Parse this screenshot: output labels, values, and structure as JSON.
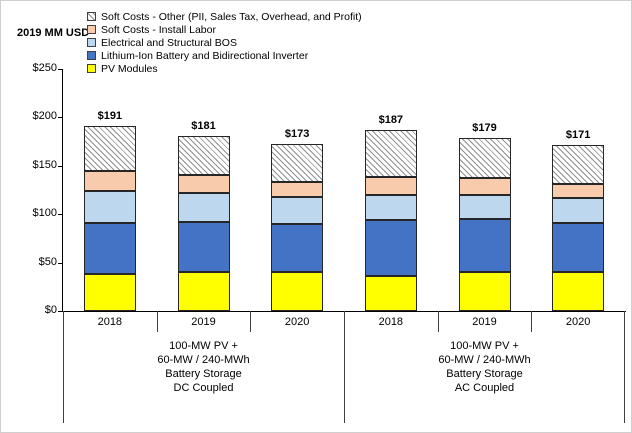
{
  "chart_data": {
    "type": "stacked-bar",
    "title": "",
    "ylabel": "2019 MM USD",
    "ylim": [
      0,
      250
    ],
    "grid": false,
    "legend_position": "top",
    "yticks": [
      {
        "v": 0,
        "label": "$0"
      },
      {
        "v": 50,
        "label": "$50"
      },
      {
        "v": 100,
        "label": "$100"
      },
      {
        "v": 150,
        "label": "$150"
      },
      {
        "v": 200,
        "label": "$200"
      },
      {
        "v": 250,
        "label": "$250"
      }
    ],
    "categories": [
      "2018",
      "2019",
      "2020",
      "2018",
      "2019",
      "2020"
    ],
    "groups": [
      {
        "label_lines": [
          "100-MW PV +",
          "60-MW / 240-MWh",
          "Battery Storage",
          "DC Coupled"
        ]
      },
      {
        "label_lines": [
          "100-MW PV +",
          "60-MW / 240-MWh",
          "Battery Storage",
          "AC Coupled"
        ]
      }
    ],
    "series": [
      {
        "name": "PV Modules",
        "color": "#FFFF00",
        "values": [
          38,
          40,
          40,
          36,
          40,
          40
        ]
      },
      {
        "name": "Lithium-Ion Battery and Bidirectional Inverter",
        "color": "#4472C4",
        "values": [
          53,
          52,
          50,
          58,
          55,
          51
        ]
      },
      {
        "name": "Electrical and Structural BOS",
        "color": "#BDD7EE",
        "values": [
          33,
          30,
          28,
          26,
          25,
          26
        ]
      },
      {
        "name": "Soft Costs - Install Labor",
        "color": "#F8CBAD",
        "values": [
          21,
          18,
          15,
          18,
          17,
          14
        ]
      },
      {
        "name": "Soft Costs - Other (PII, Sales Tax, Overhead, and Profit)",
        "color": "hatch",
        "values": [
          46,
          41,
          40,
          49,
          42,
          40
        ]
      }
    ],
    "totals": [
      "$191",
      "$181",
      "$173",
      "$187",
      "$179",
      "$171"
    ]
  },
  "legend": [
    {
      "swatch": "hatch",
      "label": "Soft Costs - Other (PII, Sales Tax, Overhead, and Profit)"
    },
    {
      "swatch": "#F8CBAD",
      "label": "Soft Costs - Install Labor"
    },
    {
      "swatch": "#BDD7EE",
      "label": "Electrical and Structural BOS"
    },
    {
      "swatch": "#4472C4",
      "label": "Lithium-Ion Battery and Bidirectional Inverter"
    },
    {
      "swatch": "#FFFF00",
      "label": "PV Modules"
    }
  ]
}
